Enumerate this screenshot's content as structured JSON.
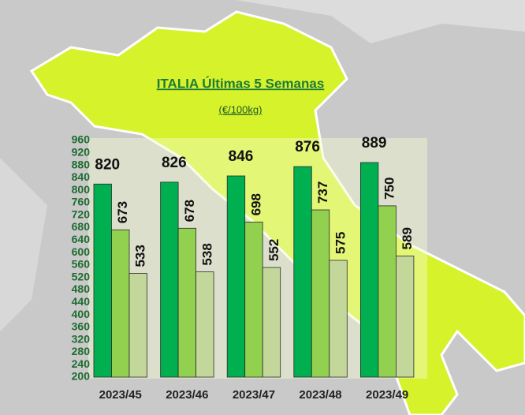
{
  "chart_data": {
    "type": "bar",
    "title": "ITALIA Últimas 5 Semanas",
    "subtitle": "(€/100kg)",
    "categories": [
      "2023/45",
      "2023/46",
      "2023/47",
      "2023/48",
      "2023/49"
    ],
    "series": [
      {
        "color": "#00b050",
        "values": [
          820,
          826,
          846,
          876,
          889
        ]
      },
      {
        "color": "#92d050",
        "values": [
          673,
          678,
          698,
          737,
          750
        ]
      },
      {
        "color": "#c4d79b",
        "values": [
          533,
          538,
          552,
          575,
          589
        ]
      }
    ],
    "ylim": [
      200,
      960
    ],
    "yticks": [
      200,
      240,
      280,
      320,
      360,
      400,
      440,
      480,
      520,
      560,
      600,
      640,
      680,
      720,
      760,
      800,
      840,
      880,
      920,
      960
    ]
  }
}
